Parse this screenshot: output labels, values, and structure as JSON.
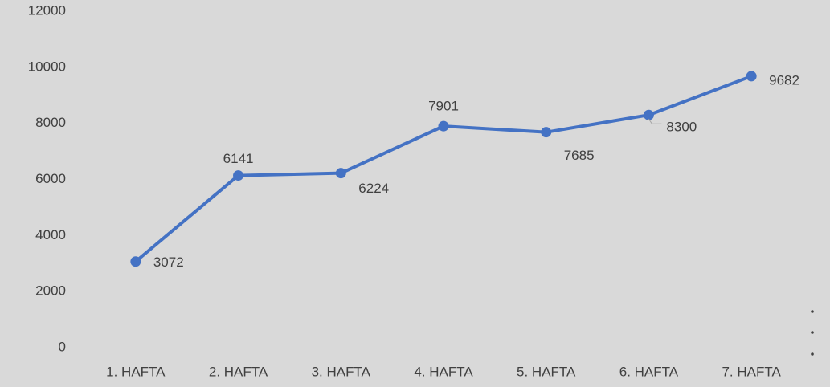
{
  "chart_data": {
    "type": "line",
    "categories": [
      "1. HAFTA",
      "2. HAFTA",
      "3. HAFTA",
      "4. HAFTA",
      "5. HAFTA",
      "6. HAFTA",
      "7. HAFTA"
    ],
    "series": [
      {
        "color": "#4472c4",
        "values": [
          3072,
          6141,
          6224,
          7901,
          7685,
          8300,
          9682
        ]
      }
    ],
    "ylim": [
      0,
      12000
    ],
    "yticks": [
      0,
      2000,
      4000,
      6000,
      8000,
      10000,
      12000
    ],
    "grid": false
  }
}
